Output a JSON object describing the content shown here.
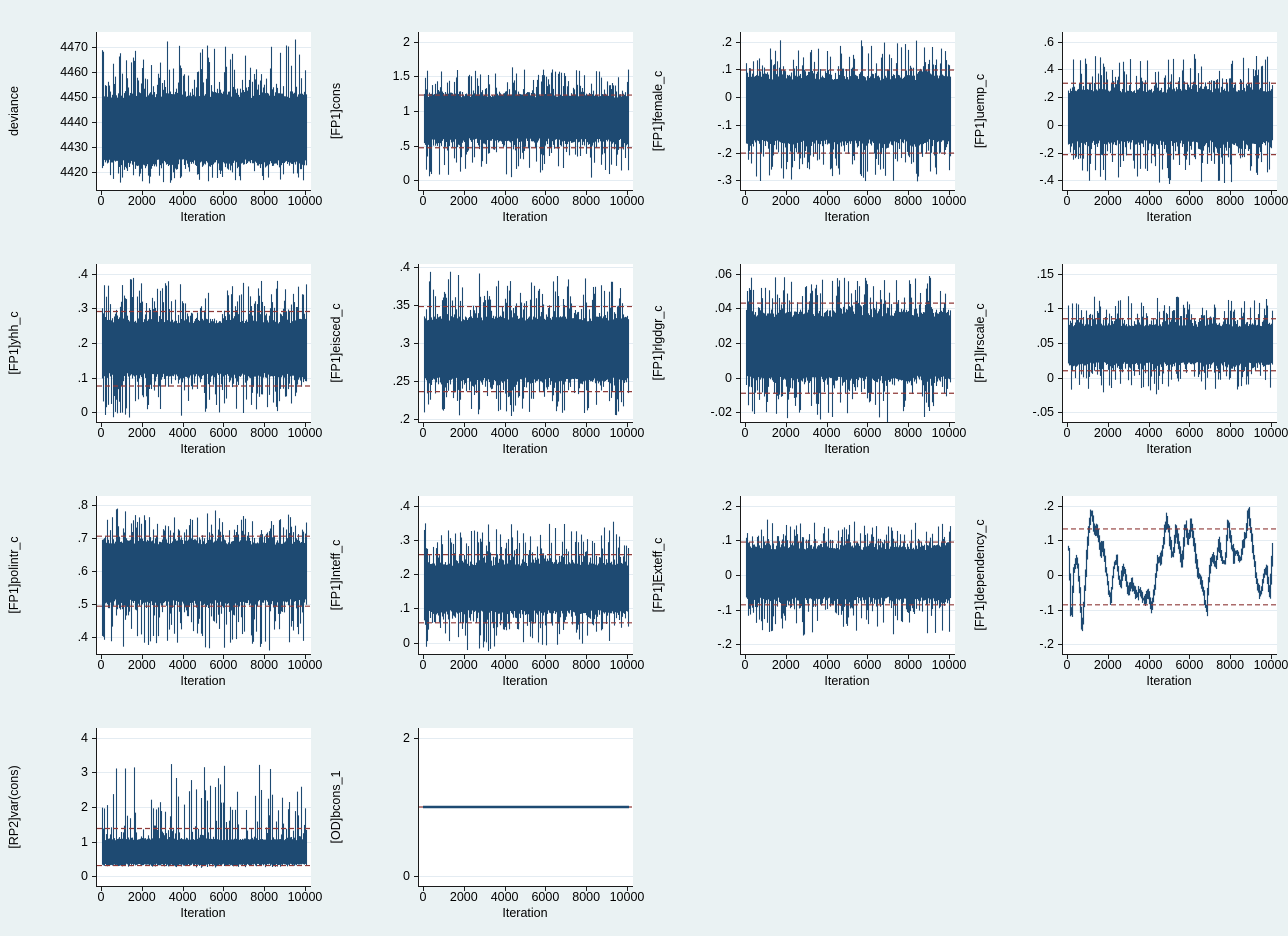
{
  "colors": {
    "background": "#eaf2f3",
    "plot_background": "#ffffff",
    "gridline": "#e4ecf2",
    "trace": "#1e4a72",
    "reference_line": "#8f3a38",
    "axis": "#1a1a1a"
  },
  "chart_data": {
    "type": "line",
    "x_title": "Iteration",
    "x_range": [
      0,
      10000
    ],
    "x_tick_values": [
      0,
      2000,
      4000,
      6000,
      8000,
      10000
    ],
    "x_tick_labels": [
      "0",
      "2000",
      "4000",
      "6000",
      "8000",
      "10000"
    ],
    "grid": "horizontal-only",
    "plots": [
      {
        "ylabel": "deviance",
        "y_tick_labels": [
          "4420",
          "4430",
          "4440",
          "4450",
          "4460",
          "4470"
        ],
        "y_tick_values": [
          4420,
          4430,
          4440,
          4450,
          4460,
          4470
        ],
        "ylim": [
          4413,
          4476
        ],
        "ref_lines": [],
        "trace": {
          "style": "noise",
          "core": [
            4423,
            4452
          ],
          "extent": [
            4415,
            4473
          ],
          "tail": 3
        },
        "seed": 3
      },
      {
        "ylabel": "[FP1]cons",
        "y_tick_labels": [
          "0",
          ".5",
          "1",
          "1.5",
          "2"
        ],
        "y_tick_values": [
          0,
          0.5,
          1,
          1.5,
          2
        ],
        "ylim": [
          -0.14,
          2.14
        ],
        "ref_lines": [
          1.23,
          0.47
        ],
        "trace": {
          "style": "noise",
          "core": [
            0.55,
            1.25
          ],
          "extent": [
            0.03,
            1.63
          ],
          "tail": 3
        },
        "seed": 5
      },
      {
        "ylabel": "[FP1]female_c",
        "y_tick_labels": [
          "-.3",
          "-.2",
          "-.1",
          "0",
          ".1",
          ".2"
        ],
        "y_tick_values": [
          -0.3,
          -0.2,
          -0.1,
          0,
          0.1,
          0.2
        ],
        "ylim": [
          -0.335,
          0.235
        ],
        "ref_lines": [
          0.098,
          -0.202
        ],
        "trace": {
          "style": "noise",
          "core": [
            -0.17,
            0.08
          ],
          "extent": [
            -0.31,
            0.21
          ],
          "tail": 3
        },
        "seed": 7
      },
      {
        "ylabel": "[FP1]uemp_c",
        "y_tick_labels": [
          "-.4",
          "-.2",
          "0",
          ".2",
          ".4",
          ".6"
        ],
        "y_tick_values": [
          -0.4,
          -0.2,
          0,
          0.2,
          0.4,
          0.6
        ],
        "ylim": [
          -0.47,
          0.67
        ],
        "ref_lines": [
          0.3,
          -0.215
        ],
        "trace": {
          "style": "noise",
          "core": [
            -0.14,
            0.26
          ],
          "extent": [
            -0.43,
            0.51
          ],
          "tail": 3
        },
        "seed": 11
      },
      {
        "ylabel": "[FP1]yhh_c",
        "y_tick_labels": [
          "0",
          ".1",
          ".2",
          ".3",
          ".4"
        ],
        "y_tick_values": [
          0,
          0.1,
          0.2,
          0.3,
          0.4
        ],
        "ylim": [
          -0.028,
          0.428
        ],
        "ref_lines": [
          0.291,
          0.076
        ],
        "trace": {
          "style": "noise",
          "core": [
            0.1,
            0.27
          ],
          "extent": [
            -0.02,
            0.39
          ],
          "tail": 3
        },
        "seed": 13
      },
      {
        "ylabel": "[FP1]eisced_c",
        "y_tick_labels": [
          ".2",
          ".25",
          ".3",
          ".35",
          ".4"
        ],
        "y_tick_values": [
          0.2,
          0.25,
          0.3,
          0.35,
          0.4
        ],
        "ylim": [
          0.196,
          0.404
        ],
        "ref_lines": [
          0.348,
          0.236
        ],
        "trace": {
          "style": "noise",
          "core": [
            0.248,
            0.335
          ],
          "extent": [
            0.202,
            0.397
          ],
          "tail": 3
        },
        "seed": 17
      },
      {
        "ylabel": "[FP1]rlgdgr_c",
        "y_tick_labels": [
          "-.02",
          "0",
          ".02",
          ".04",
          ".06"
        ],
        "y_tick_values": [
          -0.02,
          0,
          0.02,
          0.04,
          0.06
        ],
        "ylim": [
          -0.0256,
          0.0656
        ],
        "ref_lines": [
          0.043,
          -0.009
        ],
        "trace": {
          "style": "noise",
          "core": [
            -0.002,
            0.038
          ],
          "extent": [
            -0.026,
            0.059
          ],
          "tail": 3
        },
        "seed": 19
      },
      {
        "ylabel": "[FP1]lrscale_c",
        "y_tick_labels": [
          "-.05",
          "0",
          ".05",
          ".1",
          ".15"
        ],
        "y_tick_values": [
          -0.05,
          0,
          0.05,
          0.1,
          0.15
        ],
        "ylim": [
          -0.064,
          0.164
        ],
        "ref_lines": [
          0.085,
          0.01
        ],
        "trace": {
          "style": "noise",
          "core": [
            0.018,
            0.078
          ],
          "extent": [
            -0.025,
            0.12
          ],
          "tail": 3
        },
        "seed": 23
      },
      {
        "ylabel": "[FP1]polintr_c",
        "y_tick_labels": [
          ".4",
          ".5",
          ".6",
          ".7",
          ".8"
        ],
        "y_tick_values": [
          0.4,
          0.5,
          0.6,
          0.7,
          0.8
        ],
        "ylim": [
          0.35,
          0.826
        ],
        "ref_lines": [
          0.705,
          0.494
        ],
        "trace": {
          "style": "noise",
          "core": [
            0.5,
            0.695
          ],
          "extent": [
            0.36,
            0.79
          ],
          "tail": 3
        },
        "seed": 29
      },
      {
        "ylabel": "[FP1]Inteff_c",
        "y_tick_labels": [
          "0",
          ".1",
          ".2",
          ".3",
          ".4"
        ],
        "y_tick_values": [
          0,
          0.1,
          0.2,
          0.3,
          0.4
        ],
        "ylim": [
          -0.033,
          0.428
        ],
        "ref_lines": [
          0.257,
          0.058
        ],
        "trace": {
          "style": "noise",
          "core": [
            0.085,
            0.235
          ],
          "extent": [
            -0.03,
            0.353
          ],
          "tail": 3
        },
        "seed": 31
      },
      {
        "ylabel": "[FP1]Exteff_c",
        "y_tick_labels": [
          "-.2",
          "-.1",
          "0",
          ".1",
          ".2"
        ],
        "y_tick_values": [
          -0.2,
          -0.1,
          0,
          0.1,
          0.2
        ],
        "ylim": [
          -0.228,
          0.228
        ],
        "ref_lines": [
          0.095,
          -0.086
        ],
        "trace": {
          "style": "noise",
          "core": [
            -0.075,
            0.085
          ],
          "extent": [
            -0.18,
            0.16
          ],
          "tail": 3
        },
        "seed": 37
      },
      {
        "ylabel": "[FP1]dependency_c",
        "y_tick_labels": [
          "-.2",
          "-.1",
          "0",
          ".1",
          ".2"
        ],
        "y_tick_values": [
          -0.2,
          -0.1,
          0,
          0.1,
          0.2
        ],
        "ylim": [
          -0.228,
          0.228
        ],
        "ref_lines": [
          0.133,
          -0.086
        ],
        "trace": {
          "style": "walk",
          "path": [
            [
              0,
              0.08
            ],
            [
              120,
              -0.14
            ],
            [
              250,
              0.02
            ],
            [
              400,
              0.05
            ],
            [
              550,
              -0.05
            ],
            [
              650,
              -0.17
            ],
            [
              800,
              -0.02
            ],
            [
              950,
              0.12
            ],
            [
              1100,
              0.19
            ],
            [
              1250,
              0.12
            ],
            [
              1400,
              0.13
            ],
            [
              1550,
              0.07
            ],
            [
              1700,
              0.08
            ],
            [
              1900,
              -0.02
            ],
            [
              2050,
              -0.08
            ],
            [
              2200,
              0.02
            ],
            [
              2350,
              0.05
            ],
            [
              2500,
              -0.03
            ],
            [
              2700,
              0.02
            ],
            [
              2900,
              -0.05
            ],
            [
              3100,
              -0.02
            ],
            [
              3300,
              -0.06
            ],
            [
              3500,
              -0.04
            ],
            [
              3700,
              -0.08
            ],
            [
              3900,
              -0.05
            ],
            [
              4050,
              -0.1
            ],
            [
              4200,
              -0.04
            ],
            [
              4350,
              0.05
            ],
            [
              4500,
              0.04
            ],
            [
              4650,
              0.1
            ],
            [
              4800,
              0.17
            ],
            [
              4950,
              0.1
            ],
            [
              5100,
              0.05
            ],
            [
              5250,
              0.13
            ],
            [
              5400,
              0.08
            ],
            [
              5550,
              0.03
            ],
            [
              5700,
              0.15
            ],
            [
              5850,
              0.09
            ],
            [
              6000,
              0.16
            ],
            [
              6150,
              0.08
            ],
            [
              6300,
              0.02
            ],
            [
              6450,
              -0.02
            ],
            [
              6600,
              -0.04
            ],
            [
              6750,
              -0.11
            ],
            [
              6900,
              0.02
            ],
            [
              7050,
              0.06
            ],
            [
              7200,
              0.03
            ],
            [
              7350,
              0.09
            ],
            [
              7500,
              0.05
            ],
            [
              7650,
              0.03
            ],
            [
              7800,
              0.15
            ],
            [
              7950,
              0.1
            ],
            [
              8100,
              0.05
            ],
            [
              8250,
              0.07
            ],
            [
              8400,
              0.04
            ],
            [
              8550,
              0.09
            ],
            [
              8700,
              0.12
            ],
            [
              8800,
              0.19
            ],
            [
              8950,
              0.11
            ],
            [
              9100,
              0.03
            ],
            [
              9250,
              -0.03
            ],
            [
              9400,
              -0.06
            ],
            [
              9550,
              0.0
            ],
            [
              9700,
              0.02
            ],
            [
              9850,
              -0.06
            ],
            [
              10000,
              0.08
            ]
          ]
        },
        "seed": 41
      },
      {
        "ylabel": "[RP2]var(cons)",
        "y_tick_labels": [
          "0",
          "1",
          "2",
          "3",
          "4"
        ],
        "y_tick_values": [
          0,
          1,
          2,
          3,
          4
        ],
        "ylim": [
          -0.28,
          4.28
        ],
        "ref_lines": [
          1.38,
          0.31
        ],
        "trace": {
          "style": "noise",
          "core": [
            0.3,
            1.1
          ],
          "extent": [
            0.24,
            3.38
          ],
          "tail": 4.5
        },
        "seed": 43
      },
      {
        "ylabel": "[OD]bcons_1",
        "y_tick_labels": [
          "0",
          "2"
        ],
        "y_tick_values": [
          0,
          2
        ],
        "ylim": [
          -0.14,
          2.14
        ],
        "ref_lines": [
          1.0
        ],
        "trace": {
          "style": "flat",
          "value": 1.0
        },
        "seed": 47
      }
    ]
  }
}
